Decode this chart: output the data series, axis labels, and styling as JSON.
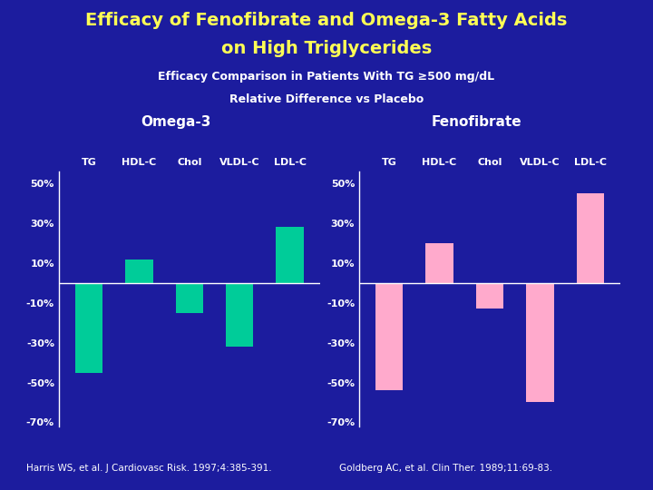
{
  "title_line1": "Efficacy of Fenofibrate and Omega-3 Fatty Acids",
  "title_line2": "on High Triglycerides",
  "subtitle_line1": "Efficacy Comparison in Patients With TG ≥500 mg/dL",
  "subtitle_line2": "Relative Difference vs Placebo",
  "background_color": "#1c1c9e",
  "title_color": "#ffff55",
  "subtitle_color": "#ffffff",
  "categories": [
    "TG",
    "HDL-C",
    "Chol",
    "VLDL-C",
    "LDL-C"
  ],
  "omega3_values": [
    -45,
    12,
    -15,
    -32,
    28
  ],
  "feno_values": [
    -54,
    20,
    -13,
    -60,
    45
  ],
  "omega3_color": "#00cc99",
  "feno_color": "#ffaacc",
  "omega3_label": "Omega-3",
  "feno_label": "Fenofibrate",
  "tick_label_color": "#ffffff",
  "ylim": [
    -72,
    56
  ],
  "yticks": [
    -70,
    -50,
    -30,
    -10,
    10,
    30,
    50
  ],
  "ytick_labels": [
    "-70%",
    "-50%",
    "-30%",
    "-10%",
    "10%",
    "30%",
    "50%"
  ],
  "ref1_normal1": "Harris WS, et al. ",
  "ref1_italic": "J Cardiovasc Risk.",
  "ref1_normal2": " 1997;4:385-391.",
  "ref2_normal1": "Goldberg AC, et al. ",
  "ref2_italic": "Clin Ther.",
  "ref2_normal2": " 1989;11:69-83.",
  "zero_line_color": "#ffffff"
}
